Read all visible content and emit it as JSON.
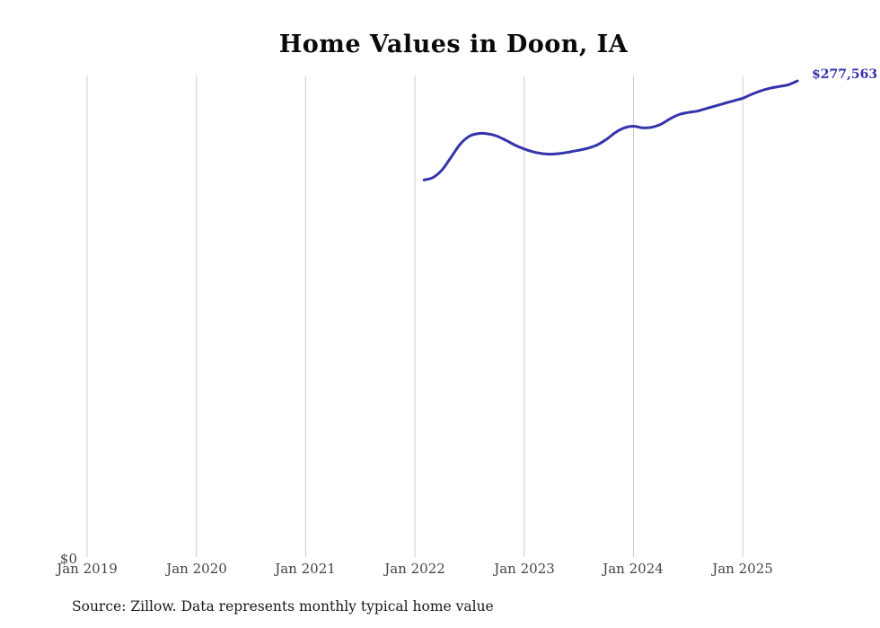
{
  "header": {
    "title": "Home Values in Doon, IA"
  },
  "footer": {
    "source": "Source: Zillow. Data represents monthly typical home value"
  },
  "chart_data": {
    "type": "line",
    "title": "Home Values in Doon, IA",
    "xlabel": "",
    "ylabel": "",
    "legend": "none",
    "grid": "vertical-only",
    "line_color": "#3333aa",
    "grid_color": "#cccccc",
    "ylim": [
      0,
      280000
    ],
    "x_range": [
      "2019-01",
      "2025-12"
    ],
    "x_tick_labels": [
      "Jan 2019",
      "Jan 2020",
      "Jan 2021",
      "Jan 2022",
      "Jan 2023",
      "Jan 2024",
      "Jan 2025"
    ],
    "y_zero_label": "$0",
    "end_value_label": "$277,563",
    "series_name": "Typical home value",
    "x": [
      "2022-02",
      "2022-03",
      "2022-04",
      "2022-05",
      "2022-06",
      "2022-07",
      "2022-08",
      "2022-09",
      "2022-10",
      "2022-11",
      "2022-12",
      "2023-01",
      "2023-02",
      "2023-03",
      "2023-04",
      "2023-05",
      "2023-06",
      "2023-07",
      "2023-08",
      "2023-09",
      "2023-10",
      "2023-11",
      "2023-12",
      "2024-01",
      "2024-02",
      "2024-03",
      "2024-04",
      "2024-05",
      "2024-06",
      "2024-07",
      "2024-08",
      "2024-09",
      "2024-10",
      "2024-11",
      "2024-12",
      "2025-01",
      "2025-02",
      "2025-03",
      "2025-04",
      "2025-05",
      "2025-06",
      "2025-07"
    ],
    "values": [
      220000,
      221500,
      226000,
      233500,
      241000,
      245500,
      247000,
      246800,
      245500,
      243000,
      240200,
      238000,
      236300,
      235300,
      235000,
      235400,
      236300,
      237300,
      238500,
      240300,
      243500,
      247500,
      250300,
      251200,
      250300,
      250600,
      252300,
      255500,
      258000,
      259200,
      260000,
      261500,
      263000,
      264500,
      266000,
      267500,
      269800,
      271800,
      273300,
      274300,
      275300,
      277563
    ]
  }
}
